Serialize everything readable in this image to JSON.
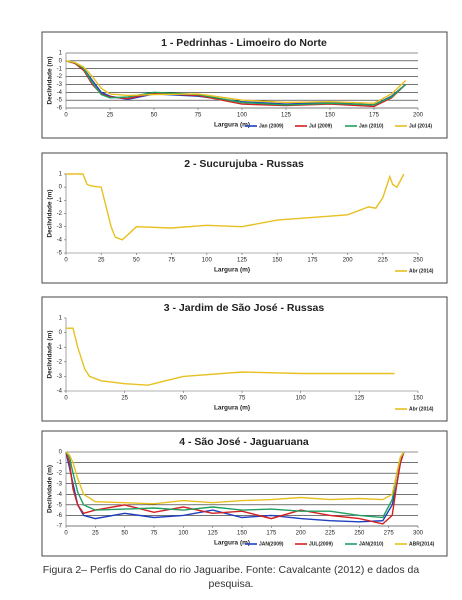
{
  "chart_data": [
    {
      "type": "line",
      "title": "1 - Pedrinhas - Limoeiro do Norte",
      "x_label": "Largura (m)",
      "y_label": "Declividade (m)",
      "x": [
        0,
        5,
        10,
        15,
        20,
        25,
        35,
        50,
        75,
        100,
        125,
        150,
        175,
        185,
        193
      ],
      "series": [
        {
          "name": "Jan (2009)",
          "color": "#1f3fbf",
          "values": [
            0,
            -0.3,
            -1,
            -2.5,
            -4,
            -4.5,
            -4.9,
            -4.2,
            -4.5,
            -5.2,
            -5.5,
            -5.3,
            -5.6,
            -4.5,
            -3
          ]
        },
        {
          "name": "Jul (2009)",
          "color": "#d42020",
          "values": [
            0,
            -0.3,
            -1.2,
            -3,
            -4.2,
            -4.6,
            -4.8,
            -4.1,
            -4.4,
            -5.5,
            -5.7,
            -5.5,
            -5.8,
            -4.7,
            -3
          ]
        },
        {
          "name": "Jan (2010)",
          "color": "#1fa060",
          "values": [
            0,
            -0.2,
            -1,
            -2.8,
            -4.3,
            -4.7,
            -4.6,
            -4,
            -4.3,
            -5.3,
            -5.6,
            -5.4,
            -5.6,
            -4.6,
            -3
          ]
        },
        {
          "name": "Jul (2014)",
          "color": "#e8c020",
          "values": [
            0,
            -0.2,
            -0.8,
            -2,
            -3.5,
            -4.2,
            -4.4,
            -4.3,
            -4.2,
            -5,
            -5.3,
            -5.2,
            -5.4,
            -4.2,
            -2.5
          ]
        }
      ],
      "xlim": [
        0,
        200
      ],
      "xticks": [
        0,
        25,
        50,
        75,
        100,
        125,
        150,
        175,
        200
      ],
      "ylim": [
        -6,
        1
      ],
      "yticks": [
        1,
        0,
        -1,
        -2,
        -3,
        -4,
        -5,
        -6
      ],
      "grid": true,
      "legend": "bottom-right"
    },
    {
      "type": "line",
      "title": "2 - Sucurujuba - Russas",
      "x_label": "Largura  (m)",
      "y_label": "Declividade (m)",
      "x": [
        0,
        5,
        12,
        15,
        18,
        25,
        32,
        35,
        40,
        45,
        50,
        75,
        100,
        125,
        150,
        175,
        200,
        215,
        220,
        225,
        230,
        232,
        235,
        240
      ],
      "series": [
        {
          "name": "Abr (2014)",
          "color": "#e8c020",
          "values": [
            1,
            1,
            1,
            0.2,
            0.1,
            0,
            -3,
            -3.8,
            -4,
            -3.5,
            -3,
            -3.1,
            -2.9,
            -3,
            -2.5,
            -2.3,
            -2.1,
            -1.5,
            -1.6,
            -0.8,
            0.8,
            0.2,
            0,
            1
          ]
        }
      ],
      "xlim": [
        0,
        250
      ],
      "xticks": [
        0,
        25,
        50,
        75,
        100,
        125,
        150,
        175,
        200,
        225,
        250
      ],
      "ylim": [
        -5,
        1
      ],
      "yticks": [
        1,
        0,
        -1,
        -2,
        -3,
        -4,
        -5
      ],
      "grid": false,
      "legend": "bottom-right"
    },
    {
      "type": "line",
      "title": "3 - Jardim de São José - Russas",
      "x_label": "Largura  (m)",
      "y_label": "Declividade (m)",
      "x": [
        0,
        3,
        5,
        8,
        10,
        15,
        25,
        35,
        40,
        50,
        75,
        100,
        125,
        140
      ],
      "series": [
        {
          "name": "Abr (2014)",
          "color": "#e8c020",
          "values": [
            0.3,
            0.3,
            -1,
            -2.5,
            -3,
            -3.3,
            -3.5,
            -3.6,
            -3.4,
            -3,
            -2.7,
            -2.8,
            -2.8,
            -2.8
          ]
        }
      ],
      "xlim": [
        0,
        150
      ],
      "xticks": [
        0,
        25,
        50,
        75,
        100,
        125,
        150
      ],
      "ylim": [
        -4,
        1
      ],
      "yticks": [
        1,
        0,
        -1,
        -2,
        -3,
        -4
      ],
      "grid": false,
      "legend": "bottom-right"
    },
    {
      "type": "line",
      "title": "4 - São José - Jaguaruana",
      "x_label": "Largura (m)",
      "y_label": "Declividade (m)",
      "x": [
        0,
        3,
        6,
        10,
        15,
        25,
        50,
        75,
        100,
        125,
        150,
        175,
        200,
        225,
        250,
        270,
        278,
        282,
        285,
        288
      ],
      "series": [
        {
          "name": "JAN(2009)",
          "color": "#1f3fbf",
          "values": [
            0,
            -1.5,
            -3,
            -5,
            -6,
            -6.3,
            -5.8,
            -6.2,
            -6,
            -5.5,
            -6.2,
            -6,
            -6.3,
            -6.5,
            -6.6,
            -6.5,
            -5,
            -3,
            -1,
            0
          ]
        },
        {
          "name": "JUL(2009)",
          "color": "#d42020",
          "values": [
            0,
            -1,
            -3.5,
            -5,
            -5.8,
            -5.5,
            -5,
            -5.7,
            -5.2,
            -5.8,
            -5.6,
            -6.3,
            -5.5,
            -6,
            -6.3,
            -6.8,
            -6,
            -3,
            -1,
            0
          ]
        },
        {
          "name": "JAN(2010)",
          "color": "#1fa060",
          "values": [
            0,
            -0.5,
            -2,
            -3.8,
            -5,
            -5.5,
            -5.4,
            -5.3,
            -5.5,
            -5.2,
            -5.5,
            -5.4,
            -5.6,
            -5.6,
            -6,
            -6.2,
            -4.5,
            -2,
            -0.5,
            0
          ]
        },
        {
          "name": "ABR(2014)",
          "color": "#e8c020",
          "values": [
            0,
            -0.3,
            -1,
            -2.5,
            -4,
            -4.7,
            -4.8,
            -4.9,
            -4.6,
            -4.8,
            -4.6,
            -4.5,
            -4.3,
            -4.5,
            -4.4,
            -4.5,
            -4,
            -2,
            -0.5,
            0
          ]
        }
      ],
      "xlim": [
        0,
        300
      ],
      "xticks": [
        0,
        25,
        50,
        75,
        100,
        125,
        150,
        175,
        200,
        225,
        250,
        275,
        300
      ],
      "ylim": [
        -7,
        0
      ],
      "yticks": [
        0,
        -1,
        -2,
        -3,
        -4,
        -5,
        -6,
        -7
      ],
      "grid": true,
      "legend": "bottom-right"
    }
  ],
  "caption": "Figura 2– Perfis do Canal do rio Jaguaribe. Fonte: Cavalcante (2012) e dados da pesquisa."
}
